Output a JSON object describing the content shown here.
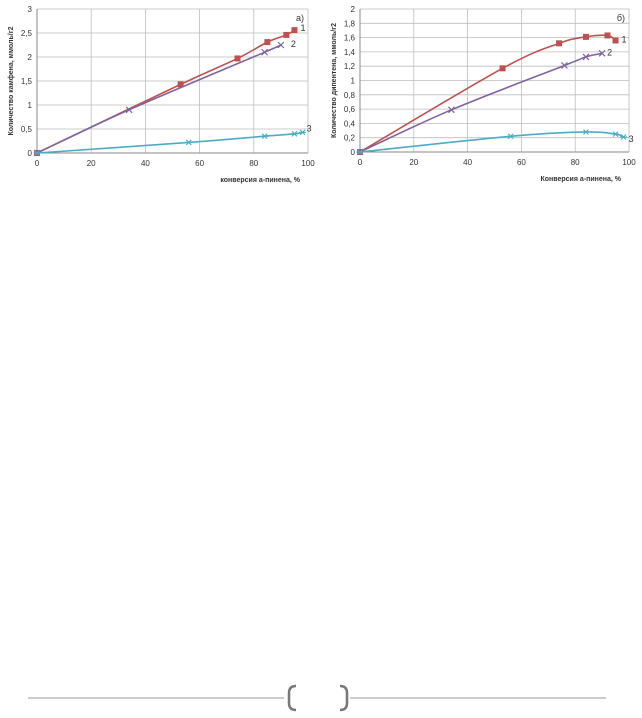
{
  "chart_data": [
    {
      "type": "line",
      "panel_label": "а)",
      "xlabel": "конверсия  а-пинена,  %",
      "ylabel": "Количество  камфена,  ммоль/г2",
      "xlim": [
        0,
        100
      ],
      "ylim": [
        0,
        3
      ],
      "xticks": [
        0,
        20,
        40,
        60,
        80,
        100
      ],
      "yticks": [
        0,
        0.5,
        1,
        1.5,
        2,
        2.5,
        3
      ],
      "ytick_labels": [
        "0",
        "0,5",
        "1",
        "1,5",
        "2",
        "2,5",
        "3"
      ],
      "grid": true,
      "series": [
        {
          "label": "1",
          "color": "#c0504d",
          "marker": "square",
          "x": [
            0,
            53,
            74,
            85,
            92,
            95
          ],
          "y": [
            0,
            1.43,
            1.97,
            2.31,
            2.46,
            2.56
          ]
        },
        {
          "label": "2",
          "color": "#8064a2",
          "marker": "x",
          "x": [
            0,
            34,
            84,
            90
          ],
          "y": [
            0,
            0.9,
            2.1,
            2.25
          ]
        },
        {
          "label": "3",
          "color": "#4bacc6",
          "marker": "star",
          "x": [
            0,
            56,
            84,
            95,
            98
          ],
          "y": [
            0,
            0.22,
            0.35,
            0.4,
            0.43
          ]
        }
      ]
    },
    {
      "type": "line",
      "panel_label": "б)",
      "xlabel": "Конверсия  а-пинена,  %",
      "ylabel": "Количество  дипентена,  ммоль/г2",
      "xlim": [
        0,
        100
      ],
      "ylim": [
        0,
        2
      ],
      "xticks": [
        0,
        20,
        40,
        60,
        80,
        100
      ],
      "yticks": [
        0,
        0.2,
        0.4,
        0.6,
        0.8,
        1,
        1.2,
        1.4,
        1.6,
        1.8,
        2
      ],
      "ytick_labels": [
        "0",
        "0,2",
        "0,4",
        "0,6",
        "0,8",
        "1",
        "1,2",
        "1,4",
        "1,6",
        "1,8",
        "2"
      ],
      "grid": true,
      "series": [
        {
          "label": "1",
          "color": "#c0504d",
          "marker": "square",
          "x": [
            0,
            53,
            74,
            84,
            92,
            95
          ],
          "y": [
            0,
            1.17,
            1.52,
            1.61,
            1.63,
            1.56
          ]
        },
        {
          "label": "2",
          "color": "#8064a2",
          "marker": "x",
          "x": [
            0,
            34,
            76,
            84,
            90
          ],
          "y": [
            0,
            0.59,
            1.21,
            1.33,
            1.38
          ]
        },
        {
          "label": "3",
          "color": "#4bacc6",
          "marker": "star",
          "x": [
            0,
            56,
            84,
            95,
            98
          ],
          "y": [
            0,
            0.22,
            0.28,
            0.25,
            0.21
          ]
        }
      ]
    }
  ]
}
